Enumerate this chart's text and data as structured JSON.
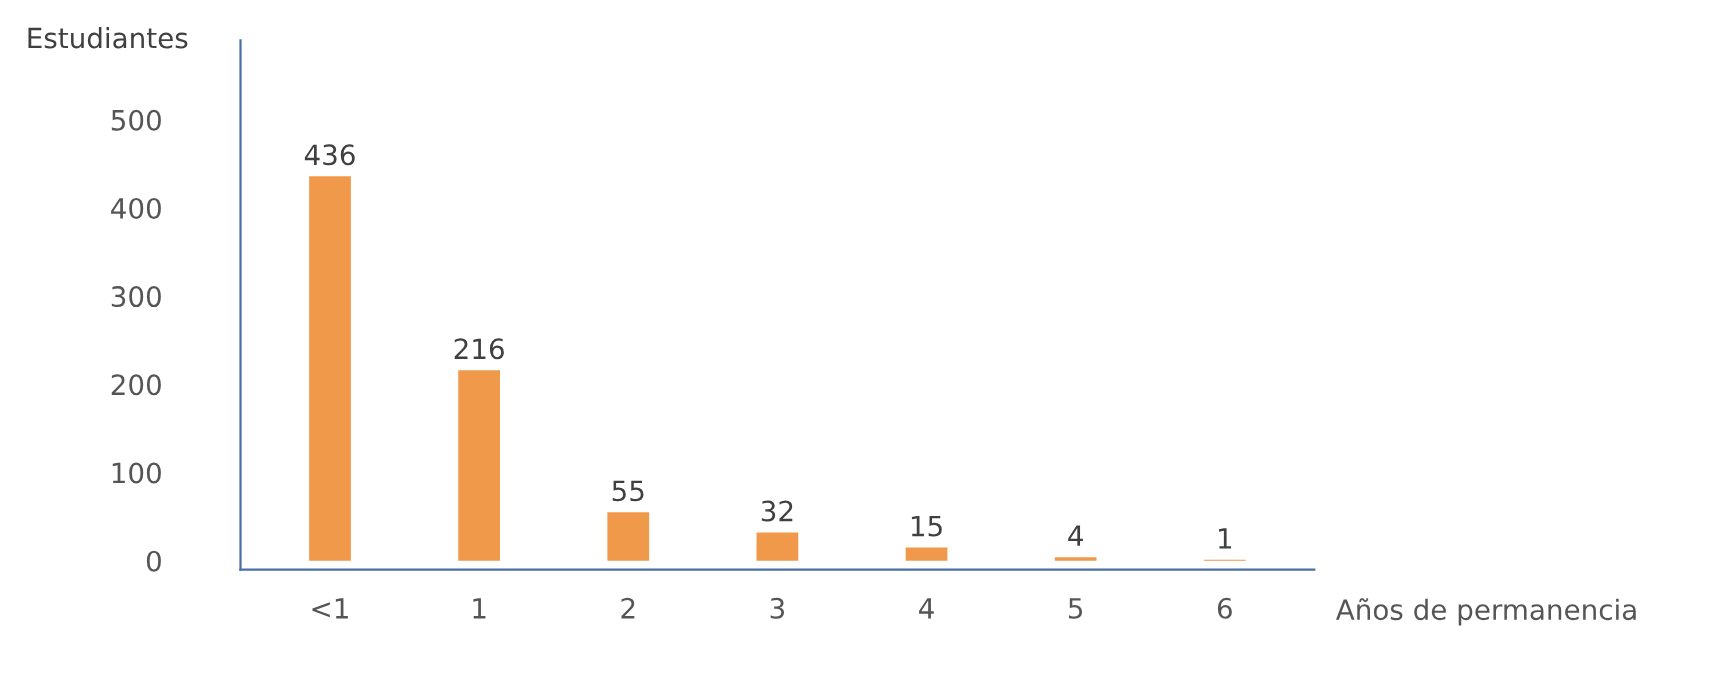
{
  "chart_data": {
    "type": "bar",
    "ylabel": "Estudiantes",
    "xlabel": "Años de permanencia",
    "categories": [
      "<1",
      "1",
      "2",
      "3",
      "4",
      "5",
      "6"
    ],
    "values": [
      436,
      216,
      55,
      32,
      15,
      4,
      1
    ],
    "color": "#f0994a",
    "ylim": [
      -10,
      590
    ],
    "yticks": [
      0,
      100,
      200,
      300,
      400,
      500
    ],
    "grid": false,
    "data_labels": true
  }
}
